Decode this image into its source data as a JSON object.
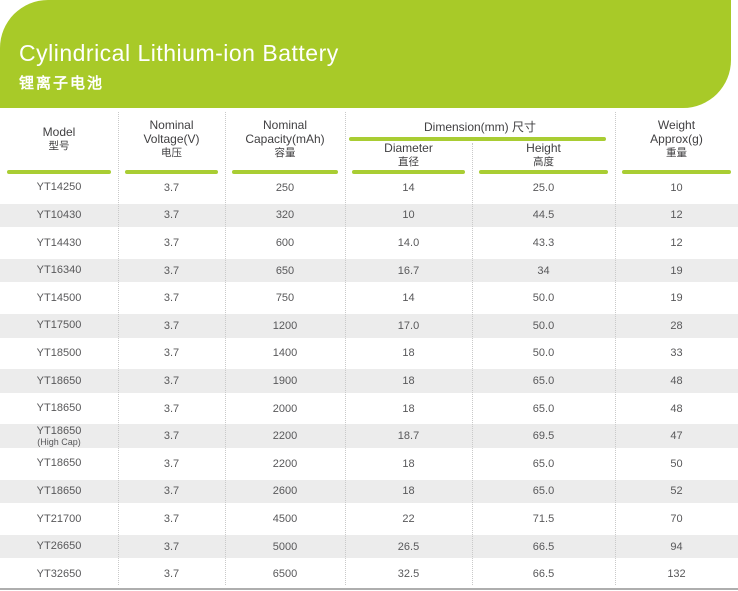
{
  "banner": {
    "title": "Cylindrical Lithium-ion Battery",
    "subtitle": "锂离子电池"
  },
  "colors": {
    "accent_green": "#a8ca28",
    "underline_green": "#a9cd33",
    "alt_row_gray": "#ececec",
    "bottom_rule_gray": "#aeaeae"
  },
  "table": {
    "header": {
      "model": {
        "en": "Model",
        "zh": "型号"
      },
      "voltage": {
        "line1": "Nominal",
        "line2": "Voltage(V)",
        "zh": "电压"
      },
      "capacity": {
        "line1": "Nominal",
        "line2": "Capacity(mAh)",
        "zh": "容量"
      },
      "dimension": {
        "label": "Dimension(mm) 尺寸"
      },
      "diameter": {
        "en": "Diameter",
        "zh": "直径"
      },
      "height": {
        "en": "Height",
        "zh": "高度"
      },
      "weight": {
        "line1": "Weight",
        "line2": "Approx(g)",
        "zh": "重量"
      }
    },
    "rows": [
      {
        "model": "YT14250",
        "voltage": "3.7",
        "capacity": "250",
        "diameter": "14",
        "height": "25.0",
        "weight": "10"
      },
      {
        "model": "YT10430",
        "voltage": "3.7",
        "capacity": "320",
        "diameter": "10",
        "height": "44.5",
        "weight": "12"
      },
      {
        "model": "YT14430",
        "voltage": "3.7",
        "capacity": "600",
        "diameter": "14.0",
        "height": "43.3",
        "weight": "12"
      },
      {
        "model": "YT16340",
        "voltage": "3.7",
        "capacity": "650",
        "diameter": "16.7",
        "height": "34",
        "weight": "19"
      },
      {
        "model": "YT14500",
        "voltage": "3.7",
        "capacity": "750",
        "diameter": "14",
        "height": "50.0",
        "weight": "19"
      },
      {
        "model": "YT17500",
        "voltage": "3.7",
        "capacity": "1200",
        "diameter": "17.0",
        "height": "50.0",
        "weight": "28"
      },
      {
        "model": "YT18500",
        "voltage": "3.7",
        "capacity": "1400",
        "diameter": "18",
        "height": "50.0",
        "weight": "33"
      },
      {
        "model": "YT18650",
        "voltage": "3.7",
        "capacity": "1900",
        "diameter": "18",
        "height": "65.0",
        "weight": "48"
      },
      {
        "model": "YT18650",
        "voltage": "3.7",
        "capacity": "2000",
        "diameter": "18",
        "height": "65.0",
        "weight": "48"
      },
      {
        "model": "YT18650",
        "model2": "(High Cap)",
        "voltage": "3.7",
        "capacity": "2200",
        "diameter": "18.7",
        "height": "69.5",
        "weight": "47"
      },
      {
        "model": "YT18650",
        "voltage": "3.7",
        "capacity": "2200",
        "diameter": "18",
        "height": "65.0",
        "weight": "50"
      },
      {
        "model": "YT18650",
        "voltage": "3.7",
        "capacity": "2600",
        "diameter": "18",
        "height": "65.0",
        "weight": "52"
      },
      {
        "model": "YT21700",
        "voltage": "3.7",
        "capacity": "4500",
        "diameter": "22",
        "height": "71.5",
        "weight": "70"
      },
      {
        "model": "YT26650",
        "voltage": "3.7",
        "capacity": "5000",
        "diameter": "26.5",
        "height": "66.5",
        "weight": "94"
      },
      {
        "model": "YT32650",
        "voltage": "3.7",
        "capacity": "6500",
        "diameter": "32.5",
        "height": "66.5",
        "weight": "132"
      }
    ]
  }
}
